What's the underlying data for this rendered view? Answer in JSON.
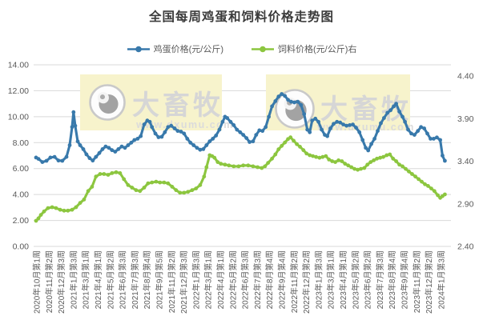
{
  "chart_data": {
    "type": "line",
    "title": "全国每周鸡蛋和饲料价格走势图",
    "grid_color": "#d9d9d9",
    "axis_text_color": "#595959",
    "left_axis": {
      "min": 0,
      "max": 14,
      "tick_values": [
        14,
        12,
        10,
        8,
        6,
        4,
        2,
        0
      ],
      "tick_labels": [
        "14.00",
        "12.00",
        "10.00",
        "8.00",
        "6.00",
        "4.00",
        "2.00",
        "0.00"
      ]
    },
    "right_axis": {
      "min": 2.4,
      "max": 4.4,
      "tick_values": [
        4.4,
        3.9,
        3.4,
        2.9,
        2.4
      ],
      "tick_labels": [
        "4.40",
        "3.90",
        "3.40",
        "2.90",
        "2.40"
      ]
    },
    "x_tick_labels": [
      "2020年10月第1周",
      "2020年11月第2周",
      "2020年12月第3周",
      "2021年1月第3周",
      "2021年3月第1周",
      "2021年4月第1周",
      "2021年5月第2周",
      "2021年6月第3周",
      "2021年7月第3周",
      "2021年8月第4周",
      "2021年9月第5周",
      "2021年11月第2周",
      "2021年12月第3周",
      "2022年1月第3周",
      "2022年3月第1周",
      "2022年4月第1周",
      "2022年5月第2周",
      "2022年6月第3周",
      "2022年7月第3周",
      "2022年8月第4周",
      "2022年9月第4周",
      "2022年11月第2周",
      "2022年12月第2周",
      "2023年1月第3周",
      "2023年3月第1周",
      "2023年4月第1周",
      "2023年5月第2周",
      "2023年6月第2周",
      "2023年7月第3周",
      "2023年8月第4周",
      "2023年9月第4周",
      "2023年11月第2周",
      "2023年12月第2周",
      "2024年1月第3周"
    ],
    "series": [
      {
        "name": "鸡蛋价格(元/公斤)",
        "axis": "left",
        "color": "#3879ab",
        "points": [
          [
            0,
            6.85
          ],
          [
            1,
            6.75
          ],
          [
            2.6,
            6.5
          ],
          [
            4.3,
            6.6
          ],
          [
            5.9,
            6.85
          ],
          [
            7.6,
            6.9
          ],
          [
            9.2,
            6.62
          ],
          [
            10.8,
            6.6
          ],
          [
            12.5,
            6.9
          ],
          [
            13.8,
            7.8
          ],
          [
            14.8,
            9.2
          ],
          [
            15.4,
            10.35
          ],
          [
            16.1,
            9.3
          ],
          [
            17.1,
            8.1
          ],
          [
            18.1,
            7.8
          ],
          [
            19.4,
            7.5
          ],
          [
            20.7,
            7.1
          ],
          [
            22,
            6.8
          ],
          [
            23.3,
            6.62
          ],
          [
            24.6,
            6.9
          ],
          [
            26,
            7.2
          ],
          [
            27.3,
            7.5
          ],
          [
            28.6,
            7.7
          ],
          [
            29.9,
            7.6
          ],
          [
            31.2,
            7.42
          ],
          [
            32.5,
            7.3
          ],
          [
            33.8,
            7.5
          ],
          [
            35.2,
            7.7
          ],
          [
            36.5,
            7.6
          ],
          [
            37.8,
            7.8
          ],
          [
            39.1,
            8.0
          ],
          [
            40.4,
            8.2
          ],
          [
            41.7,
            8.3
          ],
          [
            43,
            8.5
          ],
          [
            44.4,
            9.4
          ],
          [
            45.7,
            9.7
          ],
          [
            46.7,
            9.6
          ],
          [
            47.6,
            9.2
          ],
          [
            49,
            8.7
          ],
          [
            50.3,
            8.42
          ],
          [
            51.6,
            8.45
          ],
          [
            52.9,
            8.8
          ],
          [
            54.2,
            9.2
          ],
          [
            55.5,
            9.3
          ],
          [
            56.9,
            9.1
          ],
          [
            58.2,
            8.9
          ],
          [
            59.5,
            8.85
          ],
          [
            60.8,
            8.7
          ],
          [
            62.1,
            8.3
          ],
          [
            63.4,
            8.0
          ],
          [
            64.7,
            7.8
          ],
          [
            66.1,
            7.6
          ],
          [
            67.4,
            7.45
          ],
          [
            68.7,
            7.5
          ],
          [
            70,
            7.8
          ],
          [
            71.3,
            8.1
          ],
          [
            72.6,
            8.3
          ],
          [
            73.9,
            8.55
          ],
          [
            75.3,
            9.0
          ],
          [
            76.6,
            9.6
          ],
          [
            77.6,
            10.0
          ],
          [
            78.5,
            9.9
          ],
          [
            79.9,
            9.6
          ],
          [
            81.2,
            9.35
          ],
          [
            82.5,
            9.0
          ],
          [
            83.8,
            8.8
          ],
          [
            85.1,
            8.6
          ],
          [
            86.4,
            8.35
          ],
          [
            87.7,
            8.05
          ],
          [
            89.1,
            8.1
          ],
          [
            90.4,
            8.6
          ],
          [
            91.7,
            8.95
          ],
          [
            93,
            8.9
          ],
          [
            94.3,
            9.2
          ],
          [
            95.6,
            10.0
          ],
          [
            96.9,
            10.8
          ],
          [
            98.3,
            11.2
          ],
          [
            99.6,
            11.55
          ],
          [
            100.9,
            11.75
          ],
          [
            102.2,
            11.6
          ],
          [
            103.5,
            11.3
          ],
          [
            104.8,
            11.15
          ],
          [
            106.1,
            11.1
          ],
          [
            107.5,
            11.15
          ],
          [
            108.8,
            10.9
          ],
          [
            110.1,
            10.2
          ],
          [
            111.4,
            9.0
          ],
          [
            112.4,
            8.8
          ],
          [
            113.4,
            9.7
          ],
          [
            114.7,
            9.85
          ],
          [
            116,
            9.6
          ],
          [
            117.3,
            9.0
          ],
          [
            118.6,
            8.6
          ],
          [
            119.6,
            8.5
          ],
          [
            120.9,
            9.1
          ],
          [
            122.2,
            9.45
          ],
          [
            123.6,
            9.6
          ],
          [
            124.9,
            9.55
          ],
          [
            126.2,
            9.4
          ],
          [
            127.5,
            9.3
          ],
          [
            128.8,
            9.35
          ],
          [
            130.1,
            9.4
          ],
          [
            131.4,
            9.15
          ],
          [
            132.8,
            8.8
          ],
          [
            134.1,
            8.2
          ],
          [
            135.4,
            7.6
          ],
          [
            136.4,
            7.4
          ],
          [
            137.7,
            7.9
          ],
          [
            139,
            8.3
          ],
          [
            140.3,
            8.9
          ],
          [
            141.6,
            9.5
          ],
          [
            142.9,
            9.9
          ],
          [
            144.3,
            10.3
          ],
          [
            145.6,
            10.5
          ],
          [
            146.9,
            10.8
          ],
          [
            147.9,
            11.0
          ],
          [
            149.2,
            10.4
          ],
          [
            150.5,
            10.0
          ],
          [
            151.5,
            9.6
          ],
          [
            152.8,
            9.0
          ],
          [
            154.1,
            8.7
          ],
          [
            155.4,
            8.6
          ],
          [
            156.8,
            8.9
          ],
          [
            158.1,
            9.2
          ],
          [
            159.4,
            9.1
          ],
          [
            160.7,
            8.7
          ],
          [
            162,
            8.3
          ],
          [
            163.3,
            8.3
          ],
          [
            164.6,
            8.4
          ],
          [
            166,
            8.2
          ],
          [
            166.9,
            7.0
          ],
          [
            167.9,
            6.6
          ]
        ]
      },
      {
        "name": "饲料价格(元/公斤)右",
        "axis": "right",
        "color": "#8cc63f",
        "points": [
          [
            0,
            2.7
          ],
          [
            1,
            2.73
          ],
          [
            2,
            2.77
          ],
          [
            3.3,
            2.81
          ],
          [
            4.9,
            2.85
          ],
          [
            6.6,
            2.86
          ],
          [
            8.2,
            2.85
          ],
          [
            9.9,
            2.83
          ],
          [
            11.5,
            2.82
          ],
          [
            13.1,
            2.82
          ],
          [
            14.8,
            2.83
          ],
          [
            16.4,
            2.86
          ],
          [
            18.1,
            2.91
          ],
          [
            19.7,
            2.95
          ],
          [
            21.4,
            3.05
          ],
          [
            23,
            3.1
          ],
          [
            24.6,
            3.22
          ],
          [
            26.3,
            3.25
          ],
          [
            27.9,
            3.25
          ],
          [
            29.6,
            3.24
          ],
          [
            31.2,
            3.26
          ],
          [
            32.9,
            3.27
          ],
          [
            34.5,
            3.26
          ],
          [
            36.1,
            3.19
          ],
          [
            37.8,
            3.12
          ],
          [
            39.4,
            3.09
          ],
          [
            41.1,
            3.06
          ],
          [
            42.7,
            3.05
          ],
          [
            44.4,
            3.09
          ],
          [
            46,
            3.14
          ],
          [
            47.6,
            3.15
          ],
          [
            49.3,
            3.16
          ],
          [
            50.9,
            3.15
          ],
          [
            52.6,
            3.15
          ],
          [
            54.2,
            3.14
          ],
          [
            55.9,
            3.1
          ],
          [
            57.5,
            3.06
          ],
          [
            59.1,
            3.03
          ],
          [
            60.8,
            3.03
          ],
          [
            62.4,
            3.04
          ],
          [
            64.1,
            3.06
          ],
          [
            65.7,
            3.08
          ],
          [
            67.4,
            3.12
          ],
          [
            69,
            3.22
          ],
          [
            70,
            3.33
          ],
          [
            71.3,
            3.47
          ],
          [
            72.3,
            3.46
          ],
          [
            73.3,
            3.44
          ],
          [
            74.6,
            3.39
          ],
          [
            75.9,
            3.37
          ],
          [
            77.6,
            3.36
          ],
          [
            79.2,
            3.35
          ],
          [
            81.2,
            3.34
          ],
          [
            83.2,
            3.34
          ],
          [
            85.1,
            3.35
          ],
          [
            87.1,
            3.35
          ],
          [
            89.1,
            3.34
          ],
          [
            91,
            3.33
          ],
          [
            92.7,
            3.32
          ],
          [
            94,
            3.34
          ],
          [
            95.3,
            3.38
          ],
          [
            96.9,
            3.43
          ],
          [
            98.3,
            3.48
          ],
          [
            99.6,
            3.54
          ],
          [
            100.9,
            3.58
          ],
          [
            102.2,
            3.62
          ],
          [
            103.5,
            3.66
          ],
          [
            104.5,
            3.68
          ],
          [
            105.8,
            3.64
          ],
          [
            107.1,
            3.6
          ],
          [
            108.4,
            3.57
          ],
          [
            109.8,
            3.53
          ],
          [
            111.1,
            3.49
          ],
          [
            112.4,
            3.47
          ],
          [
            113.7,
            3.46
          ],
          [
            115,
            3.45
          ],
          [
            116.4,
            3.44
          ],
          [
            117.7,
            3.45
          ],
          [
            119,
            3.46
          ],
          [
            120.3,
            3.42
          ],
          [
            121.6,
            3.4
          ],
          [
            122.9,
            3.39
          ],
          [
            124.2,
            3.41
          ],
          [
            125.6,
            3.4
          ],
          [
            126.9,
            3.37
          ],
          [
            128.2,
            3.35
          ],
          [
            129.5,
            3.33
          ],
          [
            130.8,
            3.31
          ],
          [
            132.1,
            3.3
          ],
          [
            133.4,
            3.31
          ],
          [
            134.8,
            3.32
          ],
          [
            136.1,
            3.36
          ],
          [
            137.4,
            3.39
          ],
          [
            138.7,
            3.41
          ],
          [
            140,
            3.43
          ],
          [
            141.3,
            3.44
          ],
          [
            142.6,
            3.45
          ],
          [
            144,
            3.47
          ],
          [
            145.3,
            3.48
          ],
          [
            146.6,
            3.43
          ],
          [
            147.9,
            3.4
          ],
          [
            149.2,
            3.36
          ],
          [
            150.5,
            3.34
          ],
          [
            151.8,
            3.31
          ],
          [
            153.1,
            3.28
          ],
          [
            154.4,
            3.25
          ],
          [
            155.8,
            3.22
          ],
          [
            157.1,
            3.19
          ],
          [
            158.4,
            3.16
          ],
          [
            159.7,
            3.13
          ],
          [
            161,
            3.11
          ],
          [
            162.3,
            3.08
          ],
          [
            163.6,
            3.05
          ],
          [
            165,
            3.0
          ],
          [
            166,
            2.97
          ],
          [
            166.9,
            2.99
          ],
          [
            167.9,
            3.01
          ]
        ]
      }
    ],
    "watermark": {
      "brand": "大畜牧",
      "site": "www.dxumu.com",
      "box_color": "#f7f3cc"
    }
  }
}
